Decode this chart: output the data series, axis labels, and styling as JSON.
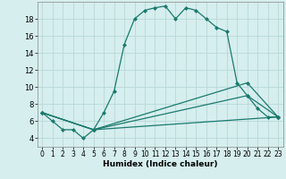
{
  "title": "",
  "xlabel": "Humidex (Indice chaleur)",
  "ylabel": "",
  "bg_color": "#d6eeee",
  "line_color": "#1a7a6e",
  "grid_color": "#b8d8d8",
  "xlim": [
    -0.5,
    23.5
  ],
  "ylim": [
    3.0,
    20.0
  ],
  "xticks": [
    0,
    1,
    2,
    3,
    4,
    5,
    6,
    7,
    8,
    9,
    10,
    11,
    12,
    13,
    14,
    15,
    16,
    17,
    18,
    19,
    20,
    21,
    22,
    23
  ],
  "yticks": [
    4,
    6,
    8,
    10,
    12,
    14,
    16,
    18
  ],
  "series": [
    {
      "x": [
        0,
        1,
        2,
        3,
        4,
        5,
        6,
        7,
        8,
        9,
        10,
        11,
        12,
        13,
        14,
        15,
        16,
        17,
        18,
        19,
        20,
        21,
        22,
        23
      ],
      "y": [
        7.0,
        6.0,
        5.0,
        5.0,
        4.0,
        5.0,
        7.0,
        9.5,
        15.0,
        18.0,
        19.0,
        19.3,
        19.5,
        18.0,
        19.3,
        19.0,
        18.0,
        17.0,
        16.5,
        10.5,
        9.0,
        7.5,
        6.5,
        6.5
      ]
    },
    {
      "x": [
        0,
        5,
        23
      ],
      "y": [
        7.0,
        5.0,
        6.5
      ]
    },
    {
      "x": [
        0,
        5,
        20,
        23
      ],
      "y": [
        7.0,
        5.0,
        9.0,
        6.5
      ]
    },
    {
      "x": [
        0,
        5,
        20,
        23
      ],
      "y": [
        7.0,
        5.0,
        10.5,
        6.5
      ]
    }
  ]
}
